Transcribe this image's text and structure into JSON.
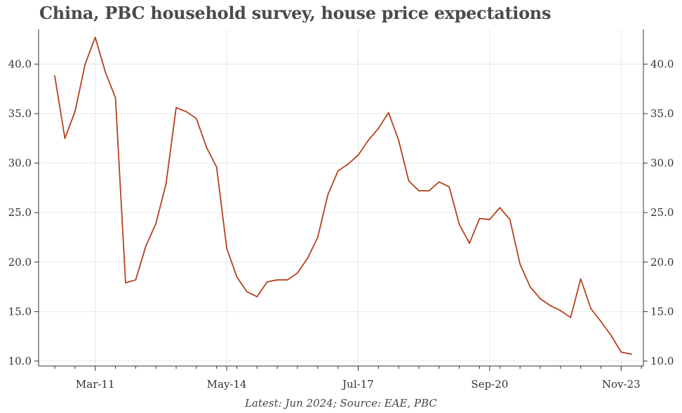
{
  "chart_data": {
    "type": "line",
    "title": "China, PBC household survey, house price expectations",
    "caption": "Latest: Jun 2024; Source: EAE, PBC",
    "xlabel": "",
    "ylabel": "",
    "ylim": [
      9.5,
      43.5
    ],
    "yticks": [
      10,
      15,
      20,
      25,
      30,
      35,
      40
    ],
    "ytick_labels": [
      "10.0",
      "15.0",
      "20.0",
      "25.0",
      "30.0",
      "35.0",
      "40.0"
    ],
    "xtick_labels": [
      "Mar-11",
      "May-14",
      "Jul-17",
      "Sep-20",
      "Nov-23"
    ],
    "xtick_positions": [
      4,
      17,
      30,
      43,
      56
    ],
    "x_range": [
      -1.6,
      58.2
    ],
    "grid": true,
    "series": [
      {
        "name": "House price expectations",
        "color": "#b5411c",
        "x": [
          0,
          1,
          2,
          3,
          4,
          5,
          6,
          7,
          8,
          9,
          10,
          11,
          12,
          13,
          14,
          15,
          16,
          17,
          18,
          19,
          20,
          21,
          22,
          23,
          24,
          25,
          26,
          27,
          28,
          29,
          30,
          31,
          32,
          33,
          34,
          35,
          36,
          37,
          38,
          39,
          40,
          41,
          42,
          43,
          44,
          45,
          46,
          47,
          48,
          49,
          50,
          51,
          52,
          53,
          54,
          55,
          56,
          57,
          58,
          59,
          60
        ],
        "values": [
          38.8,
          32.5,
          35.2,
          40.0,
          42.7,
          39.2,
          36.6,
          17.9,
          18.2,
          21.6,
          23.9,
          27.9,
          35.6,
          35.2,
          34.5,
          31.6,
          29.6,
          21.4,
          18.5,
          17.0,
          16.5,
          18.0,
          18.2,
          18.2,
          18.9,
          20.4,
          22.5,
          26.8,
          29.2,
          29.9,
          30.8,
          32.3,
          33.5,
          35.1,
          32.3,
          28.2,
          27.2,
          27.2,
          28.1,
          27.6,
          23.8,
          21.9,
          24.4,
          24.3,
          25.5,
          24.3,
          19.8,
          17.5,
          16.3,
          15.6,
          15.1,
          14.4,
          18.3,
          15.3,
          14.0,
          12.6,
          10.9,
          10.7,
          null,
          null,
          null
        ]
      }
    ]
  }
}
